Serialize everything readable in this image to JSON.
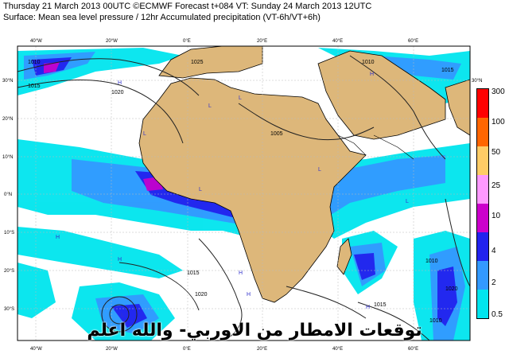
{
  "header": {
    "line1": "Thursday 21 March 2013 00UTC ©ECMWF Forecast t+084 VT: Sunday 24 March 2013 12UTC",
    "line2": "Surface: Mean sea level pressure / 12hr Accumulated precipitation (VT-6h/VT+6h)"
  },
  "longitude_labels": [
    "40°W",
    "20°W",
    "0°E",
    "20°E",
    "40°E",
    "60°E"
  ],
  "latitude_labels": [
    "30°N",
    "20°N",
    "10°N",
    "0°N",
    "10°S",
    "20°S",
    "30°S"
  ],
  "isobar_labels": [
    "1010",
    "1015",
    "1020",
    "1025",
    "1005",
    "1010",
    "1015",
    "1010",
    "1015",
    "1020",
    "1015",
    "1010",
    "1020"
  ],
  "pressure_centers": [
    "H",
    "H",
    "L",
    "L",
    "L",
    "H",
    "H",
    "L",
    "L",
    "H",
    "L",
    "H",
    "H",
    "L"
  ],
  "legend": {
    "levels": [
      "300",
      "100",
      "50",
      "25",
      "10",
      "4",
      "2",
      "0.5"
    ],
    "colors": [
      "#ff0000",
      "#ff6600",
      "#ffcc66",
      "#ff99ff",
      "#cc00cc",
      "#2222ee",
      "#3399ff",
      "#00e5ee"
    ]
  },
  "overlay_text": "توقعات الامطار من الاوربي- والله اعلم",
  "colors": {
    "ocean": "#ffffff",
    "land": "#ddb77a",
    "precip_light": "#00e5ee",
    "precip_mid": "#3399ff",
    "precip_heavy": "#2222ee",
    "precip_max": "#cc00cc"
  }
}
